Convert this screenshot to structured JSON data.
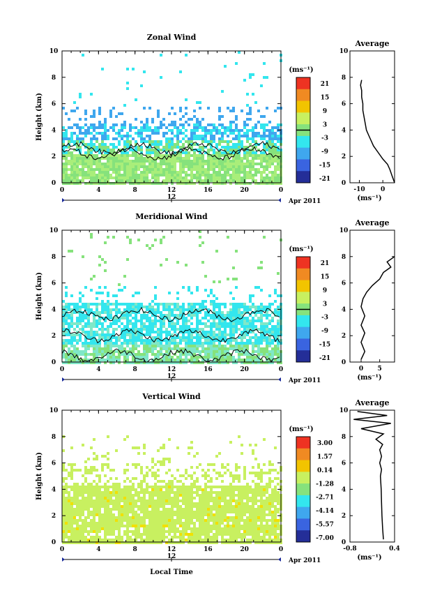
{
  "panels": [
    {
      "title": "Zonal Wind",
      "avg_title": "Average",
      "unit_label": "(ms⁻¹)",
      "ylabel": "Height (km)",
      "xticks": [
        "0",
        "4",
        "8",
        "12",
        "16",
        "20",
        "0"
      ],
      "date_tick": "12",
      "date_label": "Apr 2011",
      "yticks": [
        "0",
        "2",
        "4",
        "6",
        "8",
        "10"
      ],
      "cbar_ticks": [
        "21",
        "15",
        "9",
        "3",
        "-3",
        "-9",
        "-15",
        "-21"
      ],
      "avg_xticks": [
        "-10",
        "0"
      ],
      "avg_xlabel": "(ms⁻¹)",
      "avg_xlim": [
        -14,
        5
      ],
      "zero_contour_level": 0,
      "avg_profile": [
        [
          5,
          0
        ],
        [
          4,
          0.5
        ],
        [
          3,
          1.0
        ],
        [
          2,
          1.4
        ],
        [
          0,
          1.8
        ],
        [
          -2,
          2.3
        ],
        [
          -4,
          2.8
        ],
        [
          -5,
          3.2
        ],
        [
          -6,
          3.6
        ],
        [
          -7,
          4.0
        ],
        [
          -7.5,
          4.5
        ],
        [
          -8,
          5.0
        ],
        [
          -8.5,
          5.5
        ],
        [
          -8.5,
          6.0
        ],
        [
          -9,
          6.5
        ],
        [
          -9,
          7.0
        ],
        [
          -9.5,
          7.4
        ],
        [
          -9,
          7.8
        ]
      ],
      "field_color": "#3fa7ee",
      "low_color": "#a9ee7a"
    },
    {
      "title": "Meridional Wind",
      "avg_title": "Average",
      "unit_label": "(ms⁻¹)",
      "ylabel": "Height (km)",
      "xticks": [
        "0",
        "4",
        "8",
        "12",
        "16",
        "20",
        "0"
      ],
      "date_tick": "12",
      "date_label": "Apr 2011",
      "yticks": [
        "0",
        "2",
        "4",
        "6",
        "8",
        "10"
      ],
      "cbar_ticks": [
        "21",
        "15",
        "9",
        "3",
        "-3",
        "-9",
        "-15",
        "-21"
      ],
      "avg_xticks": [
        "0",
        "5"
      ],
      "avg_xlabel": "(ms⁻¹)",
      "avg_xlim": [
        -3,
        9
      ],
      "zero_contour_level": 0,
      "avg_profile": [
        [
          0,
          0.2
        ],
        [
          1,
          0.8
        ],
        [
          0,
          1.5
        ],
        [
          1,
          2.2
        ],
        [
          0,
          2.8
        ],
        [
          1,
          3.5
        ],
        [
          0,
          4.2
        ],
        [
          0.5,
          4.8
        ],
        [
          1.5,
          5.3
        ],
        [
          3,
          5.8
        ],
        [
          5,
          6.3
        ],
        [
          6,
          6.8
        ],
        [
          8,
          7.2
        ],
        [
          7,
          7.6
        ],
        [
          9,
          8.0
        ]
      ],
      "field_color": "#33e6ee",
      "low_color": "#7fe8c8"
    },
    {
      "title": "Vertical Wind",
      "avg_title": "Average",
      "unit_label": "(ms⁻¹)",
      "ylabel": "Height (km)",
      "xticks": [
        "0",
        "4",
        "8",
        "12",
        "16",
        "20",
        "0"
      ],
      "date_tick": "12",
      "date_label": "Apr 2011",
      "yticks": [
        "0",
        "2",
        "4",
        "6",
        "8",
        "10"
      ],
      "cbar_ticks": [
        "3.00",
        "1.57",
        "0.14",
        "-1.28",
        "-2.71",
        "-4.14",
        "-5.57",
        "-7.00"
      ],
      "avg_xticks": [
        "-0.8",
        "0.4"
      ],
      "avg_xlabel": "(ms⁻¹)",
      "avg_xlim": [
        -0.8,
        0.4
      ],
      "avg_profile": [
        [
          0.1,
          0.2
        ],
        [
          0.08,
          1.0
        ],
        [
          0.06,
          2.0
        ],
        [
          0.05,
          3.0
        ],
        [
          0.04,
          4.0
        ],
        [
          0.02,
          5.0
        ],
        [
          0.05,
          5.5
        ],
        [
          0.0,
          6.0
        ],
        [
          0.05,
          6.5
        ],
        [
          0.0,
          7.0
        ],
        [
          0.08,
          7.4
        ],
        [
          -0.1,
          7.8
        ],
        [
          0.1,
          8.2
        ],
        [
          -0.5,
          8.6
        ],
        [
          0.3,
          9.0
        ],
        [
          -0.7,
          9.3
        ],
        [
          0.2,
          9.6
        ],
        [
          -0.6,
          9.9
        ]
      ],
      "field_color": "#c8f060",
      "low_color": "#c8f060"
    }
  ],
  "xlabel_bottom": "Local Time",
  "colorbar_colors": [
    "#ee3322",
    "#f08a22",
    "#f2c400",
    "#c8f060",
    "#86e27c",
    "#33e6ee",
    "#3fa7ee",
    "#3a64e0",
    "#242e98"
  ],
  "chart_data": [
    {
      "type": "heatmap",
      "title": "Zonal Wind",
      "xlabel": "",
      "ylabel": "Height (km)",
      "xlim": [
        0,
        24
      ],
      "ylim": [
        0,
        10
      ],
      "colorbar_range": [
        -21,
        21
      ],
      "colorbar_label": "(ms⁻¹)"
    },
    {
      "type": "line",
      "title": "Average",
      "xlabel": "(ms⁻¹)",
      "ylabel": "",
      "ylim": [
        0,
        10
      ],
      "xlim": [
        -14,
        5
      ],
      "series": [
        {
          "x": [
            5,
            4,
            3,
            2,
            0,
            -2,
            -4,
            -5,
            -6,
            -7,
            -7.5,
            -8,
            -8.5,
            -8.5,
            -9,
            -9,
            -9.5,
            -9
          ],
          "y": [
            0,
            0.5,
            1.0,
            1.4,
            1.8,
            2.3,
            2.8,
            3.2,
            3.6,
            4.0,
            4.5,
            5.0,
            5.5,
            6.0,
            6.5,
            7.0,
            7.4,
            7.8
          ]
        }
      ]
    },
    {
      "type": "heatmap",
      "title": "Meridional Wind",
      "xlabel": "",
      "ylabel": "Height (km)",
      "xlim": [
        0,
        24
      ],
      "ylim": [
        0,
        10
      ],
      "colorbar_range": [
        -21,
        21
      ],
      "colorbar_label": "(ms⁻¹)"
    },
    {
      "type": "line",
      "title": "Average",
      "xlabel": "(ms⁻¹)",
      "ylabel": "",
      "ylim": [
        0,
        10
      ],
      "xlim": [
        -3,
        9
      ],
      "series": [
        {
          "x": [
            0,
            1,
            0,
            1,
            0,
            1,
            0,
            0.5,
            1.5,
            3,
            5,
            6,
            8,
            7,
            9
          ],
          "y": [
            0.2,
            0.8,
            1.5,
            2.2,
            2.8,
            3.5,
            4.2,
            4.8,
            5.3,
            5.8,
            6.3,
            6.8,
            7.2,
            7.6,
            8.0
          ]
        }
      ]
    },
    {
      "type": "heatmap",
      "title": "Vertical Wind",
      "xlabel": "Local Time",
      "ylabel": "Height (km)",
      "xlim": [
        0,
        24
      ],
      "ylim": [
        0,
        10
      ],
      "colorbar_range": [
        -7.0,
        3.0
      ],
      "colorbar_label": "(ms⁻¹)"
    },
    {
      "type": "line",
      "title": "Average",
      "xlabel": "(ms⁻¹)",
      "ylabel": "",
      "ylim": [
        0,
        10
      ],
      "xlim": [
        -0.8,
        0.4
      ],
      "series": [
        {
          "x": [
            0.1,
            0.08,
            0.06,
            0.05,
            0.04,
            0.02,
            0.05,
            0.0,
            0.05,
            0.0,
            0.08,
            -0.1,
            0.1,
            -0.5,
            0.3,
            -0.7,
            0.2,
            -0.6
          ],
          "y": [
            0.2,
            1.0,
            2.0,
            3.0,
            4.0,
            5.0,
            5.5,
            6.0,
            6.5,
            7.0,
            7.4,
            7.8,
            8.2,
            8.6,
            9.0,
            9.3,
            9.6,
            9.9
          ]
        }
      ]
    }
  ]
}
